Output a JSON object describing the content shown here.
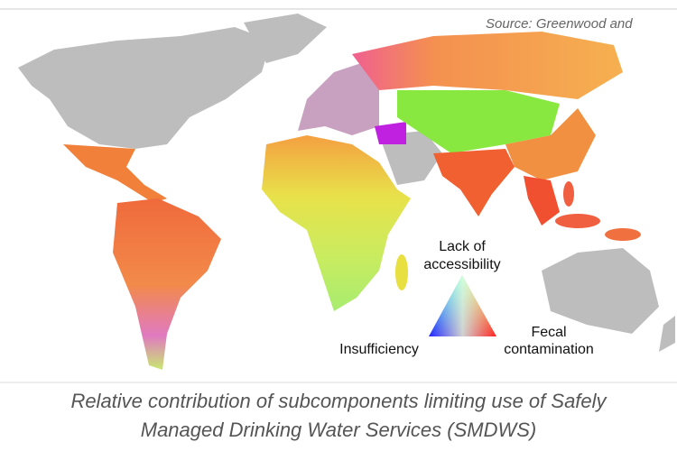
{
  "source": "Source: Greenwood and",
  "legend": {
    "top": [
      "Lack of",
      "accessibility"
    ],
    "left": "Insufficiency",
    "right": [
      "Fecal",
      "contamination"
    ]
  },
  "caption": [
    "Relative contribution of subcomponents limiting use of Safely",
    "Managed Drinking Water Services (SMDWS)"
  ]
}
